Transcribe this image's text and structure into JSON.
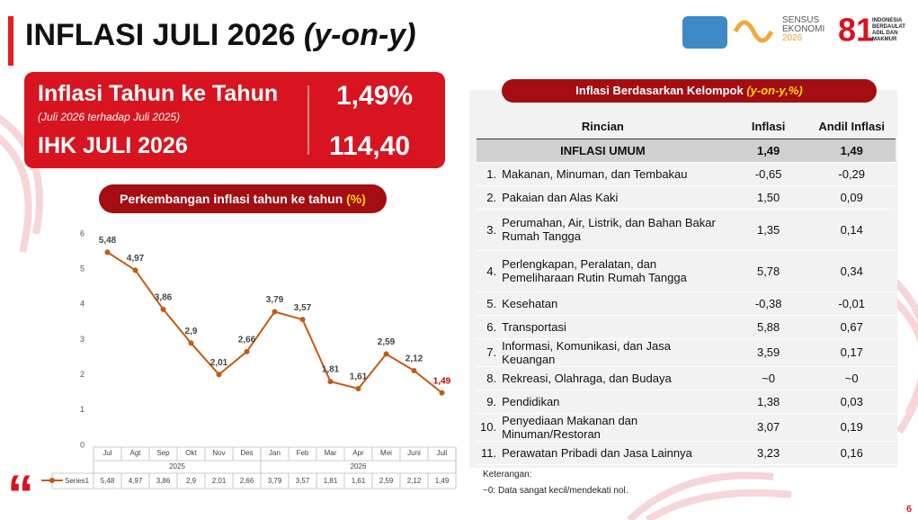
{
  "header": {
    "title": "INFLASI JULI 2026",
    "title_italic": "(y-on-y)",
    "logo_sensus": [
      "SENSUS",
      "EKONOMI",
      "2026"
    ],
    "logo_hut": [
      "INDONESIA",
      "BERDAULAT",
      "ADIL DAN",
      "MAKMUR"
    ]
  },
  "summary": {
    "yoy_label": "Inflasi Tahun ke Tahun",
    "yoy_sub": "(Juli 2026 terhadap Juli 2025)",
    "yoy_value": "1,49%",
    "ihk_label": "IHK JULI 2026",
    "ihk_value": "114,40"
  },
  "chart_data": {
    "type": "line",
    "title": "Perkembangan inflasi tahun ke tahun",
    "title_unit": "(%)",
    "category_groups": [
      {
        "label": "2025",
        "categories": [
          "Jul",
          "Agt",
          "Sep",
          "Okt",
          "Nov",
          "Des"
        ]
      },
      {
        "label": "2026",
        "categories": [
          "Jan",
          "Feb",
          "Mar",
          "Apr",
          "Mei",
          "Juni",
          "Juli"
        ]
      }
    ],
    "series": [
      {
        "name": "Series1",
        "color": "#c55a11",
        "values": [
          5.48,
          4.97,
          3.86,
          2.9,
          2.01,
          2.66,
          3.79,
          3.57,
          1.81,
          1.61,
          2.59,
          2.12,
          1.49
        ],
        "value_labels": [
          "5,48",
          "4,97",
          "3,86",
          "2,9",
          "2,01",
          "2,66",
          "3,79",
          "3,57",
          "1,81",
          "1,61",
          "2,59",
          "2,12",
          "1,49"
        ],
        "highlight_color": "#c00000"
      }
    ],
    "ylim": [
      0,
      6
    ],
    "yticks": [
      0,
      1,
      2,
      3,
      4,
      5,
      6
    ],
    "grid": false
  },
  "table": {
    "title": "Inflasi Berdasarkan Kelompok",
    "title_unit": "(y-on-y,%)",
    "header": [
      "Rincian",
      "Inflasi",
      "Andil Inflasi"
    ],
    "rows": [
      {
        "name": "INFLASI UMUM",
        "inflasi": "1,49",
        "andil": "1,49"
      },
      {
        "no": "1.",
        "name": "Makanan, Minuman, dan Tembakau",
        "inflasi": "-0,65",
        "andil": "-0,29"
      },
      {
        "no": "2.",
        "name": "Pakaian dan Alas Kaki",
        "inflasi": "1,50",
        "andil": "0,09"
      },
      {
        "no": "3.",
        "name": "Perumahan, Air, Listrik, dan Bahan Bakar Rumah Tangga",
        "inflasi": "1,35",
        "andil": "0,14"
      },
      {
        "no": "4.",
        "name": "Perlengkapan, Peralatan, dan Pemeliharaan Rutin Rumah Tangga",
        "inflasi": "5,78",
        "andil": "0,34"
      },
      {
        "no": "5.",
        "name": "Kesehatan",
        "inflasi": "-0,38",
        "andil": "-0,01"
      },
      {
        "no": "6.",
        "name": "Transportasi",
        "inflasi": "5,88",
        "andil": "0,67"
      },
      {
        "no": "7.",
        "name": "Informasi, Komunikasi, dan Jasa Keuangan",
        "inflasi": "3,59",
        "andil": "0,17"
      },
      {
        "no": "8.",
        "name": "Rekreasi, Olahraga, dan Budaya",
        "inflasi": "~0",
        "andil": "~0"
      },
      {
        "no": "9.",
        "name": "Pendidikan",
        "inflasi": "1,38",
        "andil": "0,03"
      },
      {
        "no": "10.",
        "name": "Penyediaan Makanan dan Minuman/Restoran",
        "inflasi": "3,07",
        "andil": "0,19"
      },
      {
        "no": "11.",
        "name": "Perawatan Pribadi dan Jasa Lainnya",
        "inflasi": "3,23",
        "andil": "0,16"
      }
    ],
    "notes": [
      "Keterangan:",
      "~0: Data sangat kecil/mendekati nol."
    ]
  },
  "page_number": "6"
}
